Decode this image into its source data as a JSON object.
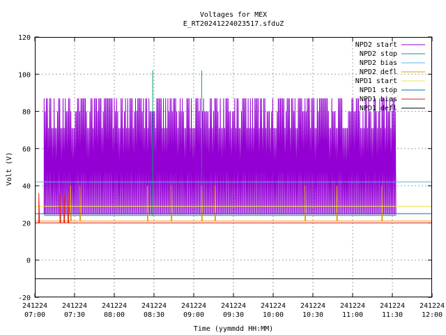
{
  "chart_data": {
    "type": "line",
    "title": "Voltages for MEX",
    "subtitle": "E_RT20241224023517.sfduZ",
    "xlabel": "Time (yymmdd HH:MM)",
    "ylabel": "Volt (V)",
    "ylim": [
      -20,
      120
    ],
    "yticks": [
      -20,
      0,
      20,
      40,
      60,
      80,
      100,
      120
    ],
    "xlim": [
      "241224 07:00",
      "241224 12:00"
    ],
    "xticks": [
      {
        "date": "241224",
        "time": "07:00"
      },
      {
        "date": "241224",
        "time": "07:30"
      },
      {
        "date": "241224",
        "time": "08:00"
      },
      {
        "date": "241224",
        "time": "08:30"
      },
      {
        "date": "241224",
        "time": "09:00"
      },
      {
        "date": "241224",
        "time": "09:30"
      },
      {
        "date": "241224",
        "time": "10:00"
      },
      {
        "date": "241224",
        "time": "10:30"
      },
      {
        "date": "241224",
        "time": "11:00"
      },
      {
        "date": "241224",
        "time": "11:30"
      },
      {
        "date": "241224",
        "time": "12:00"
      }
    ],
    "grid": true,
    "legend_position": "top-right",
    "series": [
      {
        "name": "NPD2 start",
        "color": "#9400d3",
        "base": 24.5,
        "high": 87,
        "alt": [
          71,
          80
        ],
        "start": "07:07",
        "end": "11:33",
        "note": "rapid oscillation between ~24 V and ~87 V"
      },
      {
        "name": "NPD2 stop",
        "color": "#009e73",
        "base": 24,
        "points": [
          [
            "07:07",
            24
          ],
          [
            "08:29",
            24
          ],
          [
            "08:29",
            102
          ],
          [
            "08:29",
            24
          ],
          [
            "09:06",
            24
          ],
          [
            "09:06",
            102
          ],
          [
            "09:06",
            24
          ],
          [
            "11:33",
            24
          ]
        ]
      },
      {
        "name": "NPD2 bias",
        "color": "#56b4e9",
        "base": 42,
        "points": [
          [
            "07:00",
            42
          ],
          [
            "12:00",
            42
          ]
        ]
      },
      {
        "name": "NPD2 defl",
        "color": "#e69f00",
        "base": 21,
        "start": "07:00",
        "end": "12:00",
        "spikes": [
          [
            "07:27",
            40
          ],
          [
            "07:34",
            40
          ],
          [
            "08:25",
            40
          ],
          [
            "08:43",
            40
          ],
          [
            "09:06",
            40
          ],
          [
            "09:16",
            40
          ],
          [
            "10:24",
            40
          ],
          [
            "10:48",
            40
          ],
          [
            "11:22",
            40
          ]
        ]
      },
      {
        "name": "NPD1 start",
        "color": "#f0e442",
        "base": 29,
        "points": [
          [
            "07:00",
            29
          ],
          [
            "12:00",
            29
          ]
        ]
      },
      {
        "name": "NPD1 stop",
        "color": "#0072b2",
        "base": 25,
        "points": [
          [
            "07:00",
            25
          ],
          [
            "12:00",
            25
          ]
        ]
      },
      {
        "name": "NPD1 bias",
        "color": "#e51e10",
        "base": 20,
        "start": "07:00",
        "end": "12:00",
        "spikes": [
          [
            "07:03",
            36
          ],
          [
            "07:19",
            36
          ],
          [
            "07:22",
            36
          ],
          [
            "07:25",
            36
          ]
        ]
      },
      {
        "name": "NPD1 defl",
        "color": "#000000",
        "base": -10,
        "points": [
          [
            "07:00",
            -10
          ],
          [
            "12:00",
            -10
          ]
        ]
      }
    ]
  }
}
